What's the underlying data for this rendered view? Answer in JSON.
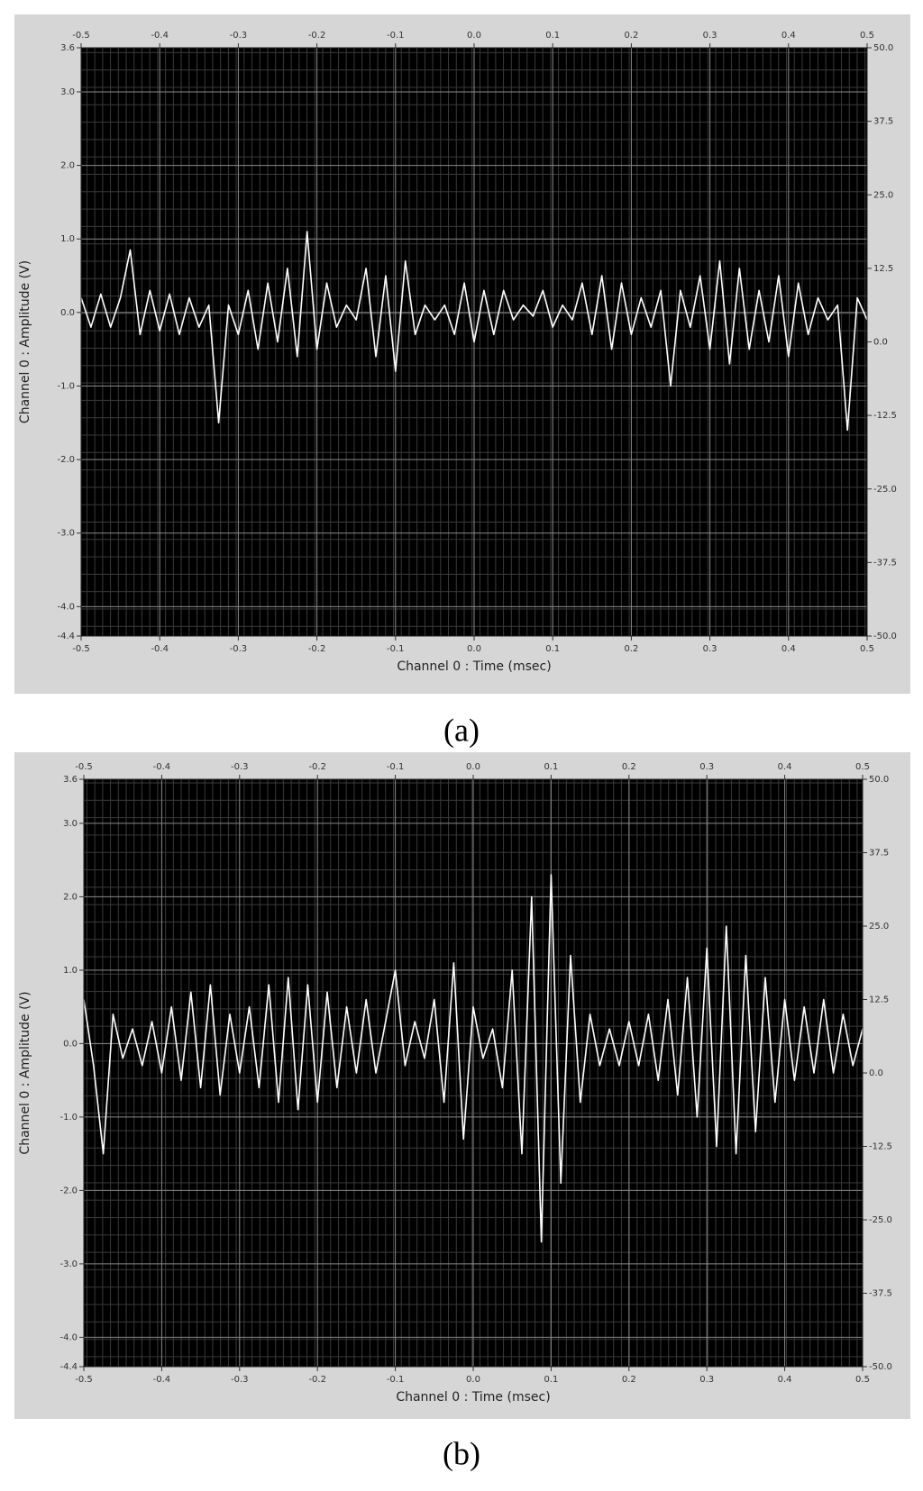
{
  "chart_data": [
    {
      "type": "line",
      "caption": "(a)",
      "x_label": "Channel 0 : Time (msec)",
      "y_label": "Channel 0 : Amplitude (V)",
      "color": "#ffffff",
      "grid": true,
      "xlim": [
        -0.5,
        0.5
      ],
      "xticks": [
        -0.5,
        -0.4,
        -0.3,
        -0.2,
        -0.1,
        {
          "value": 0,
          "label": "0.0"
        },
        0.1,
        0.2,
        0.3,
        0.4,
        0.5
      ],
      "ylim": [
        -4.4,
        3.6
      ],
      "yticks": [
        3.6,
        {
          "value": 3,
          "label": "3.0"
        },
        {
          "value": 2,
          "label": "2.0"
        },
        {
          "value": 1,
          "label": "1.0"
        },
        {
          "value": 0,
          "label": "0.0"
        },
        {
          "value": -1,
          "label": "-1.0"
        },
        {
          "value": -2,
          "label": "-2.0"
        },
        {
          "value": -3,
          "label": "-3.0"
        },
        {
          "value": -4,
          "label": "-4.0"
        },
        -4.4
      ],
      "y2lim": [
        -50,
        50
      ],
      "y2ticks": [
        {
          "value": 50,
          "label": "50.0"
        },
        37.5,
        {
          "value": 25,
          "label": "25.0"
        },
        12.5,
        {
          "value": 0,
          "label": "0.0"
        },
        -12.5,
        {
          "value": -25,
          "label": "-25.0"
        },
        -37.5,
        {
          "value": -50,
          "label": "-50.0"
        }
      ],
      "x": [
        -0.5,
        -0.4875,
        -0.475,
        -0.4625,
        -0.45,
        -0.4375,
        -0.425,
        -0.4125,
        -0.4,
        -0.3875,
        -0.375,
        -0.3625,
        -0.35,
        -0.3375,
        -0.325,
        -0.3125,
        -0.3,
        -0.2875,
        -0.275,
        -0.2625,
        -0.25,
        -0.2375,
        -0.225,
        -0.2125,
        -0.2,
        -0.1875,
        -0.175,
        -0.1625,
        -0.15,
        -0.1375,
        -0.125,
        -0.1125,
        -0.1,
        -0.0875,
        -0.075,
        -0.0625,
        -0.05,
        -0.0375,
        -0.025,
        -0.0125,
        0,
        0.0125,
        0.025,
        0.0375,
        0.05,
        0.0625,
        0.075,
        0.0875,
        0.1,
        0.1125,
        0.125,
        0.1375,
        0.15,
        0.1625,
        0.175,
        0.1875,
        0.2,
        0.2125,
        0.225,
        0.2375,
        0.25,
        0.2625,
        0.275,
        0.2875,
        0.3,
        0.3125,
        0.325,
        0.3375,
        0.35,
        0.3625,
        0.375,
        0.3875,
        0.4,
        0.4125,
        0.425,
        0.4375,
        0.45,
        0.4625,
        0.475,
        0.4875,
        0.5
      ],
      "values": [
        0.2,
        -0.2,
        0.25,
        -0.2,
        0.2,
        0.85,
        -0.3,
        0.3,
        -0.25,
        0.25,
        -0.3,
        0.2,
        -0.2,
        0.1,
        -1.5,
        0.1,
        -0.3,
        0.3,
        -0.5,
        0.4,
        -0.4,
        0.6,
        -0.6,
        1.1,
        -0.5,
        0.4,
        -0.2,
        0.1,
        -0.1,
        0.6,
        -0.6,
        0.5,
        -0.8,
        0.7,
        -0.3,
        0.1,
        -0.1,
        0.1,
        -0.3,
        0.4,
        -0.4,
        0.3,
        -0.3,
        0.3,
        -0.1,
        0.1,
        -0.05,
        0.3,
        -0.2,
        0.1,
        -0.1,
        0.4,
        -0.3,
        0.5,
        -0.5,
        0.4,
        -0.3,
        0.2,
        -0.2,
        0.3,
        -1.0,
        0.3,
        -0.2,
        0.5,
        -0.5,
        0.7,
        -0.7,
        0.6,
        -0.5,
        0.3,
        -0.4,
        0.5,
        -0.6,
        0.4,
        -0.3,
        0.2,
        -0.1,
        0.1,
        -1.6,
        0.2,
        -0.1
      ]
    },
    {
      "type": "line",
      "caption": "(b)",
      "x_label": "Channel 0 : Time (msec)",
      "y_label": "Channel 0 : Amplitude (V)",
      "color": "#ffffff",
      "grid": true,
      "xlim": [
        -0.5,
        0.5
      ],
      "xticks": [
        -0.5,
        -0.4,
        -0.3,
        -0.2,
        -0.1,
        {
          "value": 0,
          "label": "0.0"
        },
        0.1,
        0.2,
        0.3,
        0.4,
        0.5
      ],
      "ylim": [
        -4.4,
        3.6
      ],
      "yticks": [
        3.6,
        {
          "value": 3,
          "label": "3.0"
        },
        {
          "value": 2,
          "label": "2.0"
        },
        {
          "value": 1,
          "label": "1.0"
        },
        {
          "value": 0,
          "label": "0.0"
        },
        {
          "value": -1,
          "label": "-1.0"
        },
        {
          "value": -2,
          "label": "-2.0"
        },
        {
          "value": -3,
          "label": "-3.0"
        },
        {
          "value": -4,
          "label": "-4.0"
        },
        -4.4
      ],
      "y2lim": [
        -50,
        50
      ],
      "y2ticks": [
        {
          "value": 50,
          "label": "50.0"
        },
        37.5,
        {
          "value": 25,
          "label": "25.0"
        },
        12.5,
        {
          "value": 0,
          "label": "0.0"
        },
        -12.5,
        {
          "value": -25,
          "label": "-25.0"
        },
        -37.5,
        {
          "value": -50,
          "label": "-50.0"
        }
      ],
      "x": [
        -0.5,
        -0.4875,
        -0.475,
        -0.4625,
        -0.45,
        -0.4375,
        -0.425,
        -0.4125,
        -0.4,
        -0.3875,
        -0.375,
        -0.3625,
        -0.35,
        -0.3375,
        -0.325,
        -0.3125,
        -0.3,
        -0.2875,
        -0.275,
        -0.2625,
        -0.25,
        -0.2375,
        -0.225,
        -0.2125,
        -0.2,
        -0.1875,
        -0.175,
        -0.1625,
        -0.15,
        -0.1375,
        -0.125,
        -0.1125,
        -0.1,
        -0.0875,
        -0.075,
        -0.0625,
        -0.05,
        -0.0375,
        -0.025,
        -0.0125,
        0,
        0.0125,
        0.025,
        0.0375,
        0.05,
        0.0625,
        0.075,
        0.0875,
        0.1,
        0.1125,
        0.125,
        0.1375,
        0.15,
        0.1625,
        0.175,
        0.1875,
        0.2,
        0.2125,
        0.225,
        0.2375,
        0.25,
        0.2625,
        0.275,
        0.2875,
        0.3,
        0.3125,
        0.325,
        0.3375,
        0.35,
        0.3625,
        0.375,
        0.3875,
        0.4,
        0.4125,
        0.425,
        0.4375,
        0.45,
        0.4625,
        0.475,
        0.4875,
        0.5
      ],
      "values": [
        0.6,
        -0.3,
        -1.5,
        0.4,
        -0.2,
        0.2,
        -0.3,
        0.3,
        -0.4,
        0.5,
        -0.5,
        0.7,
        -0.6,
        0.8,
        -0.7,
        0.4,
        -0.4,
        0.5,
        -0.6,
        0.8,
        -0.8,
        0.9,
        -0.9,
        0.8,
        -0.8,
        0.7,
        -0.6,
        0.5,
        -0.4,
        0.6,
        -0.4,
        0.3,
        1.0,
        -0.3,
        0.3,
        -0.2,
        0.6,
        -0.8,
        1.1,
        -1.3,
        0.5,
        -0.2,
        0.2,
        -0.6,
        1.0,
        -1.5,
        2.0,
        -2.7,
        2.3,
        -1.9,
        1.2,
        -0.8,
        0.4,
        -0.3,
        0.2,
        -0.3,
        0.3,
        -0.3,
        0.4,
        -0.5,
        0.6,
        -0.7,
        0.9,
        -1.0,
        1.3,
        -1.4,
        1.6,
        -1.5,
        1.2,
        -1.2,
        0.9,
        -0.8,
        0.6,
        -0.5,
        0.5,
        -0.4,
        0.6,
        -0.4,
        0.4,
        -0.3,
        0.2
      ]
    }
  ]
}
